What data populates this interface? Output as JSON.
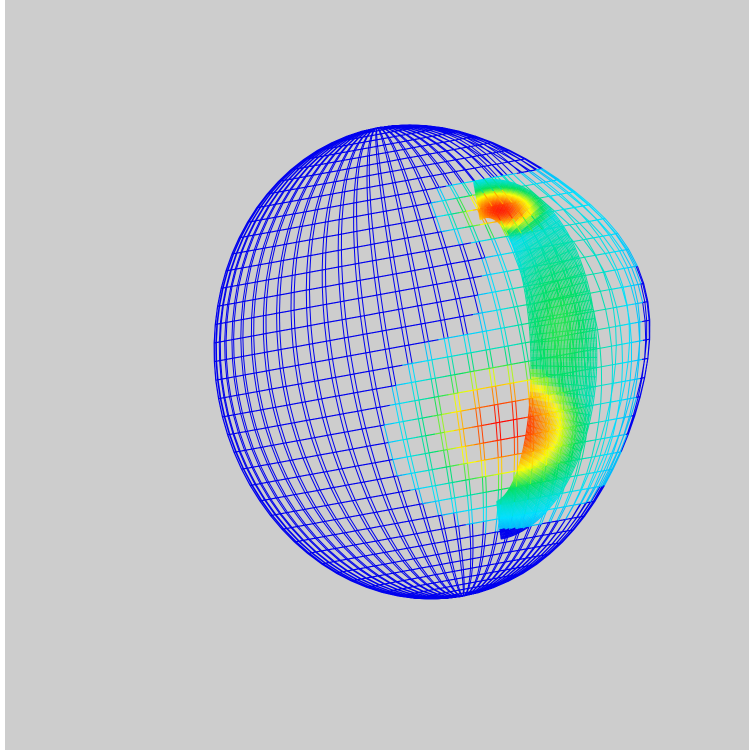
{
  "viewport": {
    "background": "#cdcdcd",
    "edge_color": "#ffffff"
  },
  "mesh": {
    "stroke_base": "#0000ee",
    "colormap": [
      "#0000e6",
      "#00e0ff",
      "#00e060",
      "#ffff00",
      "#ff8000",
      "#ff0000"
    ],
    "hotspots": [
      {
        "label": "lower-hotspot",
        "peak": 1.0
      },
      {
        "label": "upper-ridge-hotspot",
        "peak": 0.95
      }
    ]
  }
}
